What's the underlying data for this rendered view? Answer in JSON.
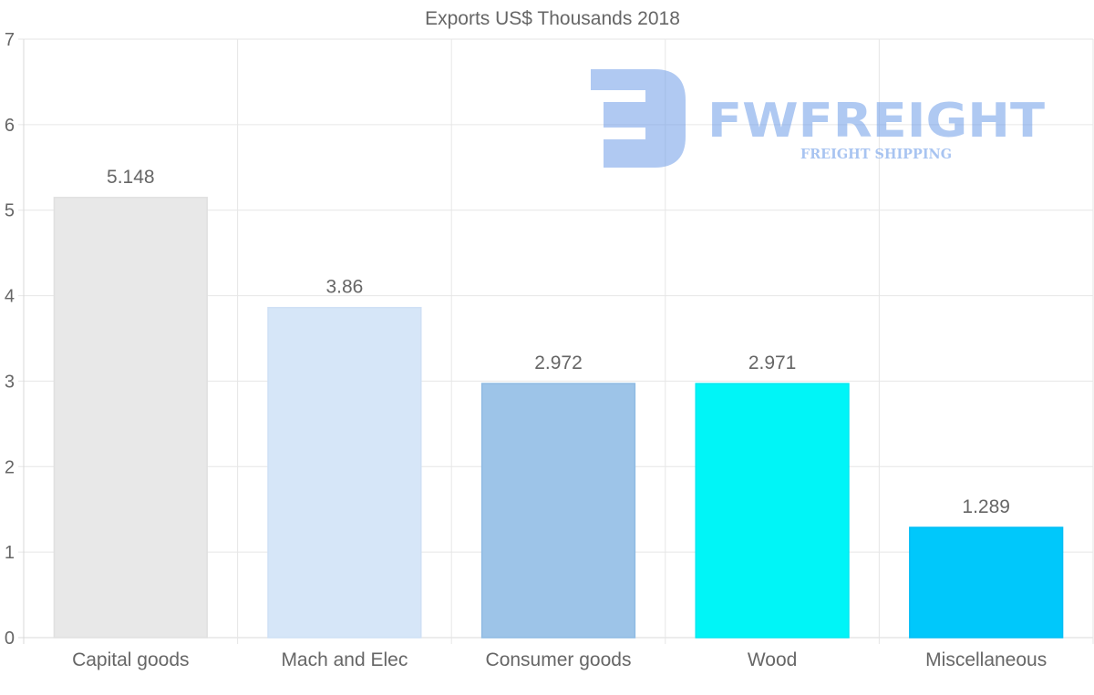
{
  "chart_data": {
    "type": "bar",
    "title": "Exports US$ Thousands 2018",
    "categories": [
      "Capital goods",
      "Mach and Elec",
      "Consumer goods",
      "Wood",
      "Miscellaneous"
    ],
    "values": [
      5.148,
      3.86,
      2.972,
      2.971,
      1.289
    ],
    "value_labels": [
      "5.148",
      "3.86",
      "2.972",
      "2.971",
      "1.289"
    ],
    "bar_colors": [
      "#e8e8e8",
      "#d6e6f8",
      "#9dc4e8",
      "#00f5f7",
      "#00c8fb"
    ],
    "bar_border_colors": [
      "#e0e0e0",
      "#cfe0f5",
      "#8fbbe3",
      "#00e8f0",
      "#00bdf5"
    ],
    "ylim": [
      0,
      7
    ],
    "yticks": [
      "0",
      "1",
      "2",
      "3",
      "4",
      "5",
      "6",
      "7"
    ],
    "xlabel": "",
    "ylabel": "",
    "grid": true,
    "legend": "none"
  },
  "watermark": {
    "brand": "FWFREIGHT",
    "tagline": "FREIGHT SHIPPING",
    "color": "#6f9de8"
  }
}
